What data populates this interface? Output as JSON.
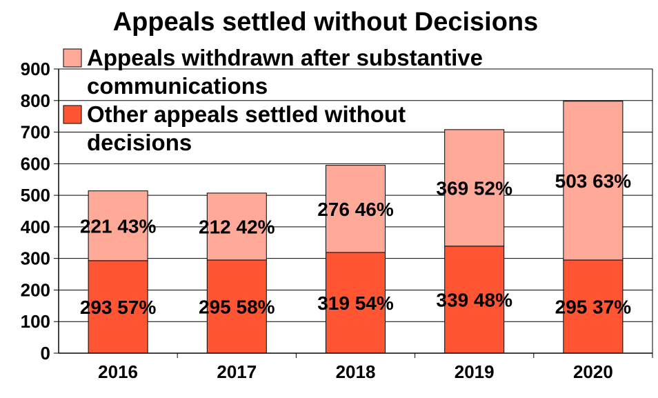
{
  "chart_data": {
    "type": "bar",
    "stacked": true,
    "title": "Appeals settled without Decisions",
    "xlabel": "",
    "ylabel": "",
    "categories": [
      "2016",
      "2017",
      "2018",
      "2019",
      "2020"
    ],
    "ylim": [
      0,
      900
    ],
    "yticks": [
      "0",
      "100",
      "200",
      "300",
      "400",
      "500",
      "600",
      "700",
      "800",
      "900"
    ],
    "grid": true,
    "legend_position": "top-left (inside plot)",
    "series": [
      {
        "name": "Other appeals settled without decisions",
        "legend_lines": [
          "Other appeals settled without",
          "decisions"
        ],
        "color": "#ff5533",
        "values": [
          293,
          295,
          319,
          339,
          295
        ],
        "labels": [
          "293 57%",
          "295 58%",
          "319 54%",
          "339 48%",
          "295 37%"
        ]
      },
      {
        "name": "Appeals withdrawn after substantive communications",
        "legend_lines": [
          "Appeals withdrawn after substantive",
          "communications"
        ],
        "color": "#ffaa99",
        "values": [
          221,
          212,
          276,
          369,
          503
        ],
        "labels": [
          "221 43%",
          "212 42%",
          "276 46%",
          "369 52%",
          "503 63%"
        ]
      }
    ]
  }
}
